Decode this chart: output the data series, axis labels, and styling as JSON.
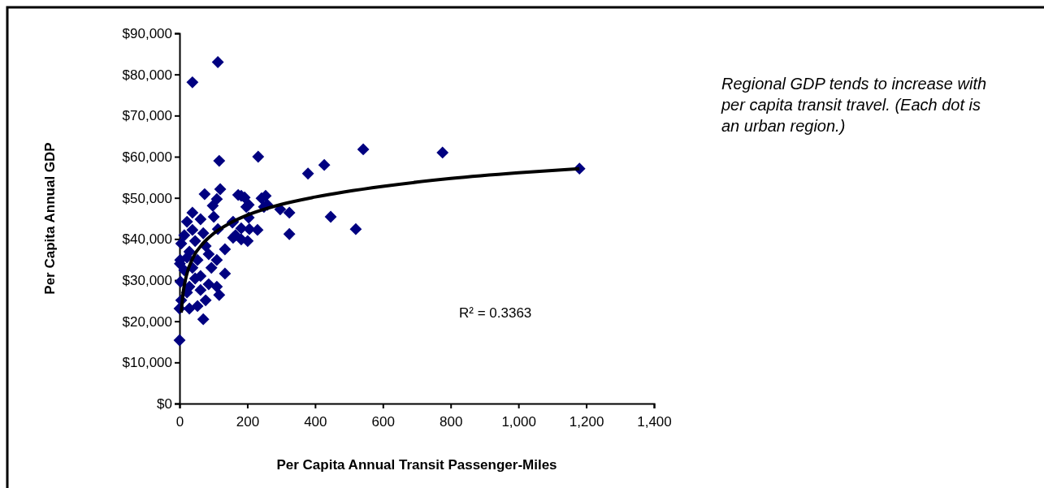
{
  "chart_data": {
    "type": "scatter",
    "xlabel": "Per Capita Annual Transit Passenger-Miles",
    "ylabel": "Per Capita Annual GDP",
    "xlim": [
      0,
      1400
    ],
    "xticks": [
      0,
      {
        "value": 200,
        "label": "200"
      },
      {
        "value": 400,
        "label": "400"
      },
      {
        "value": 600,
        "label": "600"
      },
      {
        "value": 800,
        "label": "800"
      },
      {
        "value": 1000,
        "label": "1,000"
      },
      {
        "value": 1200,
        "label": "1,200"
      },
      {
        "value": 1400,
        "label": "1,400"
      }
    ],
    "ylim": [
      0,
      90000
    ],
    "yticks": [
      {
        "value": 0,
        "label": "$0"
      },
      {
        "value": 10000,
        "label": "$10,000"
      },
      {
        "value": 20000,
        "label": "$20,000"
      },
      {
        "value": 30000,
        "label": "$30,000"
      },
      {
        "value": 40000,
        "label": "$40,000"
      },
      {
        "value": 50000,
        "label": "$50,000"
      },
      {
        "value": 60000,
        "label": "$60,000"
      },
      {
        "value": 70000,
        "label": "$70,000"
      },
      {
        "value": 80000,
        "label": "$80,000"
      },
      {
        "value": 90000,
        "label": "$90,000"
      }
    ],
    "grid": false,
    "marker": "diamond",
    "series": [
      {
        "type": "scatter",
        "color": "#000080",
        "x": [
          38,
          113,
          0,
          117,
          232,
          379,
          427,
          542,
          776,
          1180,
          520,
          446,
          324,
          324,
          297,
          254,
          259,
          230,
          201,
          192,
          204,
          173,
          204,
          182,
          156,
          182,
          158,
          74,
          120,
          110,
          182,
          197,
          242,
          249,
          98,
          38,
          101,
          22,
          62,
          113,
          158,
          206,
          165,
          134,
          14,
          46,
          77,
          29,
          2,
          53,
          110,
          94,
          134,
          14,
          46,
          86,
          62,
          110,
          117,
          22,
          5,
          77,
          53,
          0,
          70,
          29,
          38,
          5,
          70,
          22,
          86,
          38,
          62,
          3,
          29,
          1
        ],
        "values": [
          78100,
          83000,
          15400,
          59000,
          60000,
          55900,
          58000,
          61800,
          61000,
          57100,
          42400,
          45400,
          41200,
          46400,
          47200,
          50500,
          48300,
          42200,
          39500,
          50100,
          48300,
          50700,
          45200,
          42600,
          44000,
          39900,
          40300,
          50900,
          52100,
          49700,
          50500,
          47800,
          49900,
          47800,
          48100,
          46400,
          45400,
          44200,
          44800,
          42400,
          44200,
          42400,
          40900,
          37500,
          40900,
          39500,
          38300,
          36900,
          34900,
          34900,
          34900,
          33000,
          31600,
          32400,
          30400,
          29000,
          27600,
          28400,
          26400,
          27000,
          25100,
          25100,
          23700,
          23100,
          20500,
          23100,
          42200,
          38900,
          41400,
          35500,
          36300,
          33000,
          31000,
          29600,
          28400,
          34000
        ]
      },
      {
        "type": "line",
        "color": "#000000",
        "line_style": "solid",
        "marker": "none",
        "x": [
          5,
          10,
          20,
          40,
          70,
          100,
          150,
          200,
          300,
          400,
          600,
          800,
          1000,
          1180
        ],
        "values": [
          22100,
          26600,
          31000,
          35500,
          39000,
          41300,
          43900,
          45800,
          48400,
          50200,
          52800,
          54700,
          56100,
          57100
        ]
      }
    ],
    "annotations": [
      "R² = 0.3363",
      "Regional GDP tends to increase with per capita transit travel. (Each dot is an urban region.)"
    ]
  }
}
